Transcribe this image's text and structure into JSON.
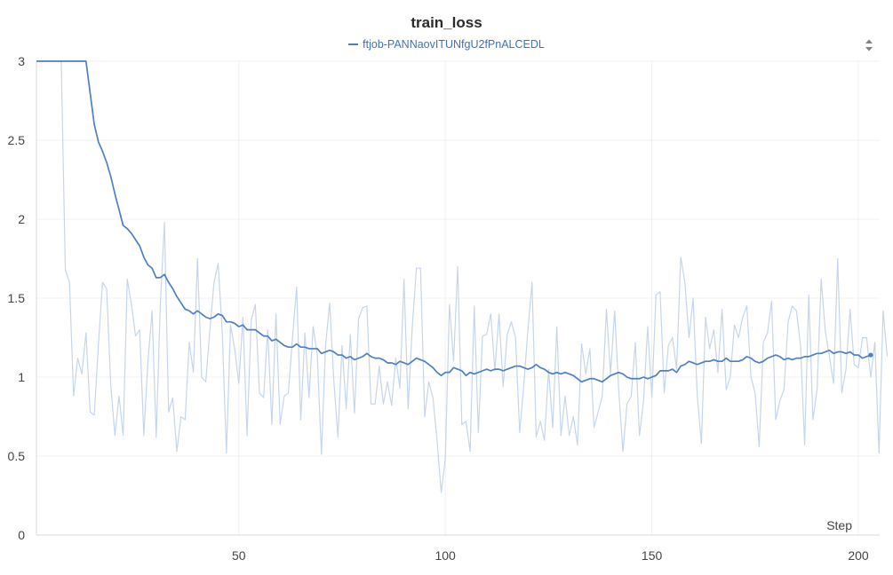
{
  "chart_data": {
    "type": "line",
    "title": "train_loss",
    "xlabel": "Step",
    "ylabel": "",
    "xlim": [
      1,
      200
    ],
    "ylim": [
      0,
      3
    ],
    "x_ticks": [
      50,
      100,
      150,
      200
    ],
    "y_ticks": [
      0,
      0.5,
      1,
      1.5,
      2,
      2.5,
      3
    ],
    "grid": true,
    "legend_position": "top-center",
    "colors": {
      "smoothed": "#4f7fc4",
      "raw": "#c5d6ec",
      "axis": "#d9d9d9",
      "grid": "#f0f0f0"
    },
    "series": [
      {
        "name": "ftjob-PANNaovITUNfgU2fPnALCEDL",
        "x_start": 1,
        "x_step": 1,
        "raw_values": [
          3,
          3,
          3,
          3,
          3,
          3,
          3,
          1.68,
          1.6,
          0.88,
          1.12,
          1.02,
          1.28,
          0.78,
          0.76,
          1.2,
          1.6,
          1.56,
          0.95,
          0.63,
          0.88,
          0.63,
          1.62,
          1.46,
          1.26,
          1.3,
          0.63,
          1.1,
          1.42,
          0.62,
          1.46,
          1.98,
          0.78,
          0.87,
          0.53,
          0.75,
          0.73,
          1.22,
          1.03,
          1.75,
          1.0,
          0.97,
          1.3,
          1.6,
          1.72,
          1.28,
          0.52,
          1.33,
          1.18,
          0.96,
          1.38,
          0.63,
          1.36,
          1.46,
          0.9,
          0.87,
          1.3,
          0.7,
          1.4,
          0.7,
          0.88,
          0.9,
          1.25,
          1.57,
          0.73,
          1.28,
          0.87,
          1.32,
          1.14,
          0.51,
          1.2,
          1.47,
          0.98,
          0.62,
          1.2,
          0.8,
          1.27,
          0.77,
          1.37,
          1.44,
          1.45,
          0.83,
          0.83,
          1.07,
          0.83,
          0.97,
          0.82,
          1.12,
          0.93,
          1.62,
          0.8,
          1.32,
          1.69,
          1.69,
          0.75,
          0.97,
          0.87,
          0.6,
          0.27,
          0.48,
          1.46,
          1.1,
          1.7,
          0.7,
          0.72,
          0.53,
          1.45,
          0.65,
          1.26,
          1.27,
          1.4,
          1.04,
          1.4,
          0.94,
          1.27,
          1.35,
          1.25,
          0.65,
          0.95,
          1.3,
          1.6,
          0.62,
          0.72,
          0.6,
          1.05,
          0.68,
          1.32,
          0.63,
          0.88,
          0.63,
          0.75,
          0.57,
          1.21,
          1.02,
          1.18,
          0.68,
          0.78,
          0.88,
          1.43,
          1.02,
          1.42,
          0.91,
          0.53,
          0.83,
          0.88,
          1.22,
          0.63,
          0.85,
          1.32,
          0.87,
          1.52,
          1.54,
          0.9,
          1.2,
          1.25,
          1.05,
          1.76,
          1.6,
          1.25,
          1.5,
          0.88,
          0.58,
          1.38,
          1.18,
          1.3,
          1.03,
          1.43,
          0.92,
          1.0,
          1.33,
          1.25,
          1.38,
          1.45,
          1.0,
          0.9,
          0.56,
          1.22,
          1.28,
          1.48,
          0.73,
          0.85,
          0.92,
          1.35,
          1.45,
          1.42,
          1.2,
          0.57,
          1.52,
          0.73,
          0.92,
          1.62,
          1.29,
          1.13,
          0.96,
          1.75,
          0.9,
          1.05,
          1.43,
          1.08,
          1.06,
          1.25,
          1.25,
          1.0,
          1.22,
          0.52,
          1.42,
          1.13
        ],
        "smoothed_values": [
          3,
          3,
          3,
          3,
          3,
          3,
          3,
          3,
          3,
          3,
          3,
          3,
          3,
          2.8,
          2.6,
          2.49,
          2.43,
          2.36,
          2.27,
          2.16,
          2.06,
          1.96,
          1.94,
          1.91,
          1.87,
          1.83,
          1.76,
          1.71,
          1.69,
          1.63,
          1.63,
          1.65,
          1.6,
          1.56,
          1.51,
          1.47,
          1.43,
          1.42,
          1.4,
          1.42,
          1.4,
          1.38,
          1.37,
          1.38,
          1.4,
          1.39,
          1.35,
          1.35,
          1.34,
          1.32,
          1.33,
          1.3,
          1.3,
          1.3,
          1.28,
          1.26,
          1.26,
          1.23,
          1.24,
          1.22,
          1.2,
          1.19,
          1.19,
          1.21,
          1.19,
          1.19,
          1.18,
          1.18,
          1.18,
          1.15,
          1.16,
          1.17,
          1.16,
          1.14,
          1.14,
          1.12,
          1.13,
          1.11,
          1.12,
          1.13,
          1.15,
          1.13,
          1.12,
          1.12,
          1.11,
          1.09,
          1.09,
          1.08,
          1.1,
          1.09,
          1.08,
          1.1,
          1.12,
          1.11,
          1.1,
          1.08,
          1.06,
          1.03,
          1.01,
          1.03,
          1.03,
          1.06,
          1.05,
          1.04,
          1.01,
          1.03,
          1.02,
          1.03,
          1.04,
          1.05,
          1.04,
          1.05,
          1.05,
          1.04,
          1.05,
          1.06,
          1.07,
          1.07,
          1.06,
          1.05,
          1.06,
          1.08,
          1.06,
          1.05,
          1.03,
          1.02,
          1.03,
          1.02,
          1.03,
          1.02,
          1.01,
          0.99,
          0.97,
          0.98,
          0.99,
          0.99,
          0.98,
          0.97,
          0.99,
          1.01,
          1.02,
          1.03,
          1.02,
          1.0,
          0.99,
          0.99,
          0.99,
          1.0,
          0.99,
          1.0,
          1.01,
          1.04,
          1.04,
          1.04,
          1.05,
          1.03,
          1.07,
          1.08,
          1.1,
          1.09,
          1.08,
          1.09,
          1.1,
          1.1,
          1.11,
          1.1,
          1.1,
          1.12,
          1.1,
          1.1,
          1.1,
          1.11,
          1.13,
          1.12,
          1.1,
          1.09,
          1.1,
          1.12,
          1.13,
          1.14,
          1.13,
          1.11,
          1.12,
          1.11,
          1.12,
          1.12,
          1.13,
          1.13,
          1.14,
          1.15,
          1.15,
          1.16,
          1.17,
          1.15,
          1.16,
          1.16,
          1.15,
          1.16,
          1.14,
          1.14,
          1.12,
          1.13,
          1.14
        ]
      }
    ]
  }
}
